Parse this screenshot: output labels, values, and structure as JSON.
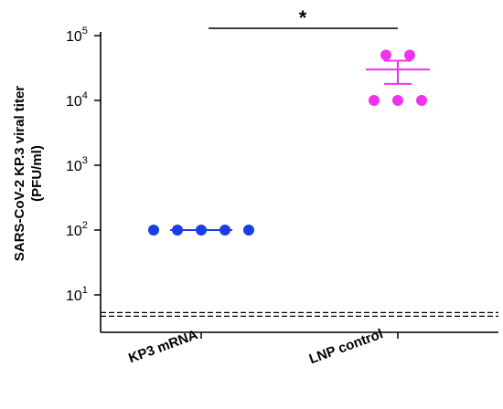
{
  "chart_data": {
    "type": "scatter",
    "title": "",
    "ylabel_lines": [
      "SARS-CoV-2 KP.3 viral titer",
      "(PFU/ml)"
    ],
    "yscale": "log",
    "ylim": [
      1,
      100000
    ],
    "y_ticks": [
      {
        "base": "10",
        "exp": "1"
      },
      {
        "base": "10",
        "exp": "2"
      },
      {
        "base": "10",
        "exp": "3"
      },
      {
        "base": "10",
        "exp": "4"
      },
      {
        "base": "10",
        "exp": "5"
      }
    ],
    "categories": [
      "KP3 mRNA",
      "LNP control"
    ],
    "limit_of_detection": 5,
    "significance": "*",
    "series": [
      {
        "category": "KP3 mRNA",
        "color": "#1a3de6",
        "values": [
          100,
          100,
          100,
          100,
          100
        ],
        "mean": 100,
        "sem_low": 100,
        "sem_high": 100
      },
      {
        "category": "LNP control",
        "color": "#ee33ee",
        "values": [
          50000,
          50000,
          10000,
          10000,
          10000
        ],
        "mean": 30000,
        "sem_low": 18000,
        "sem_high": 41000
      }
    ]
  }
}
